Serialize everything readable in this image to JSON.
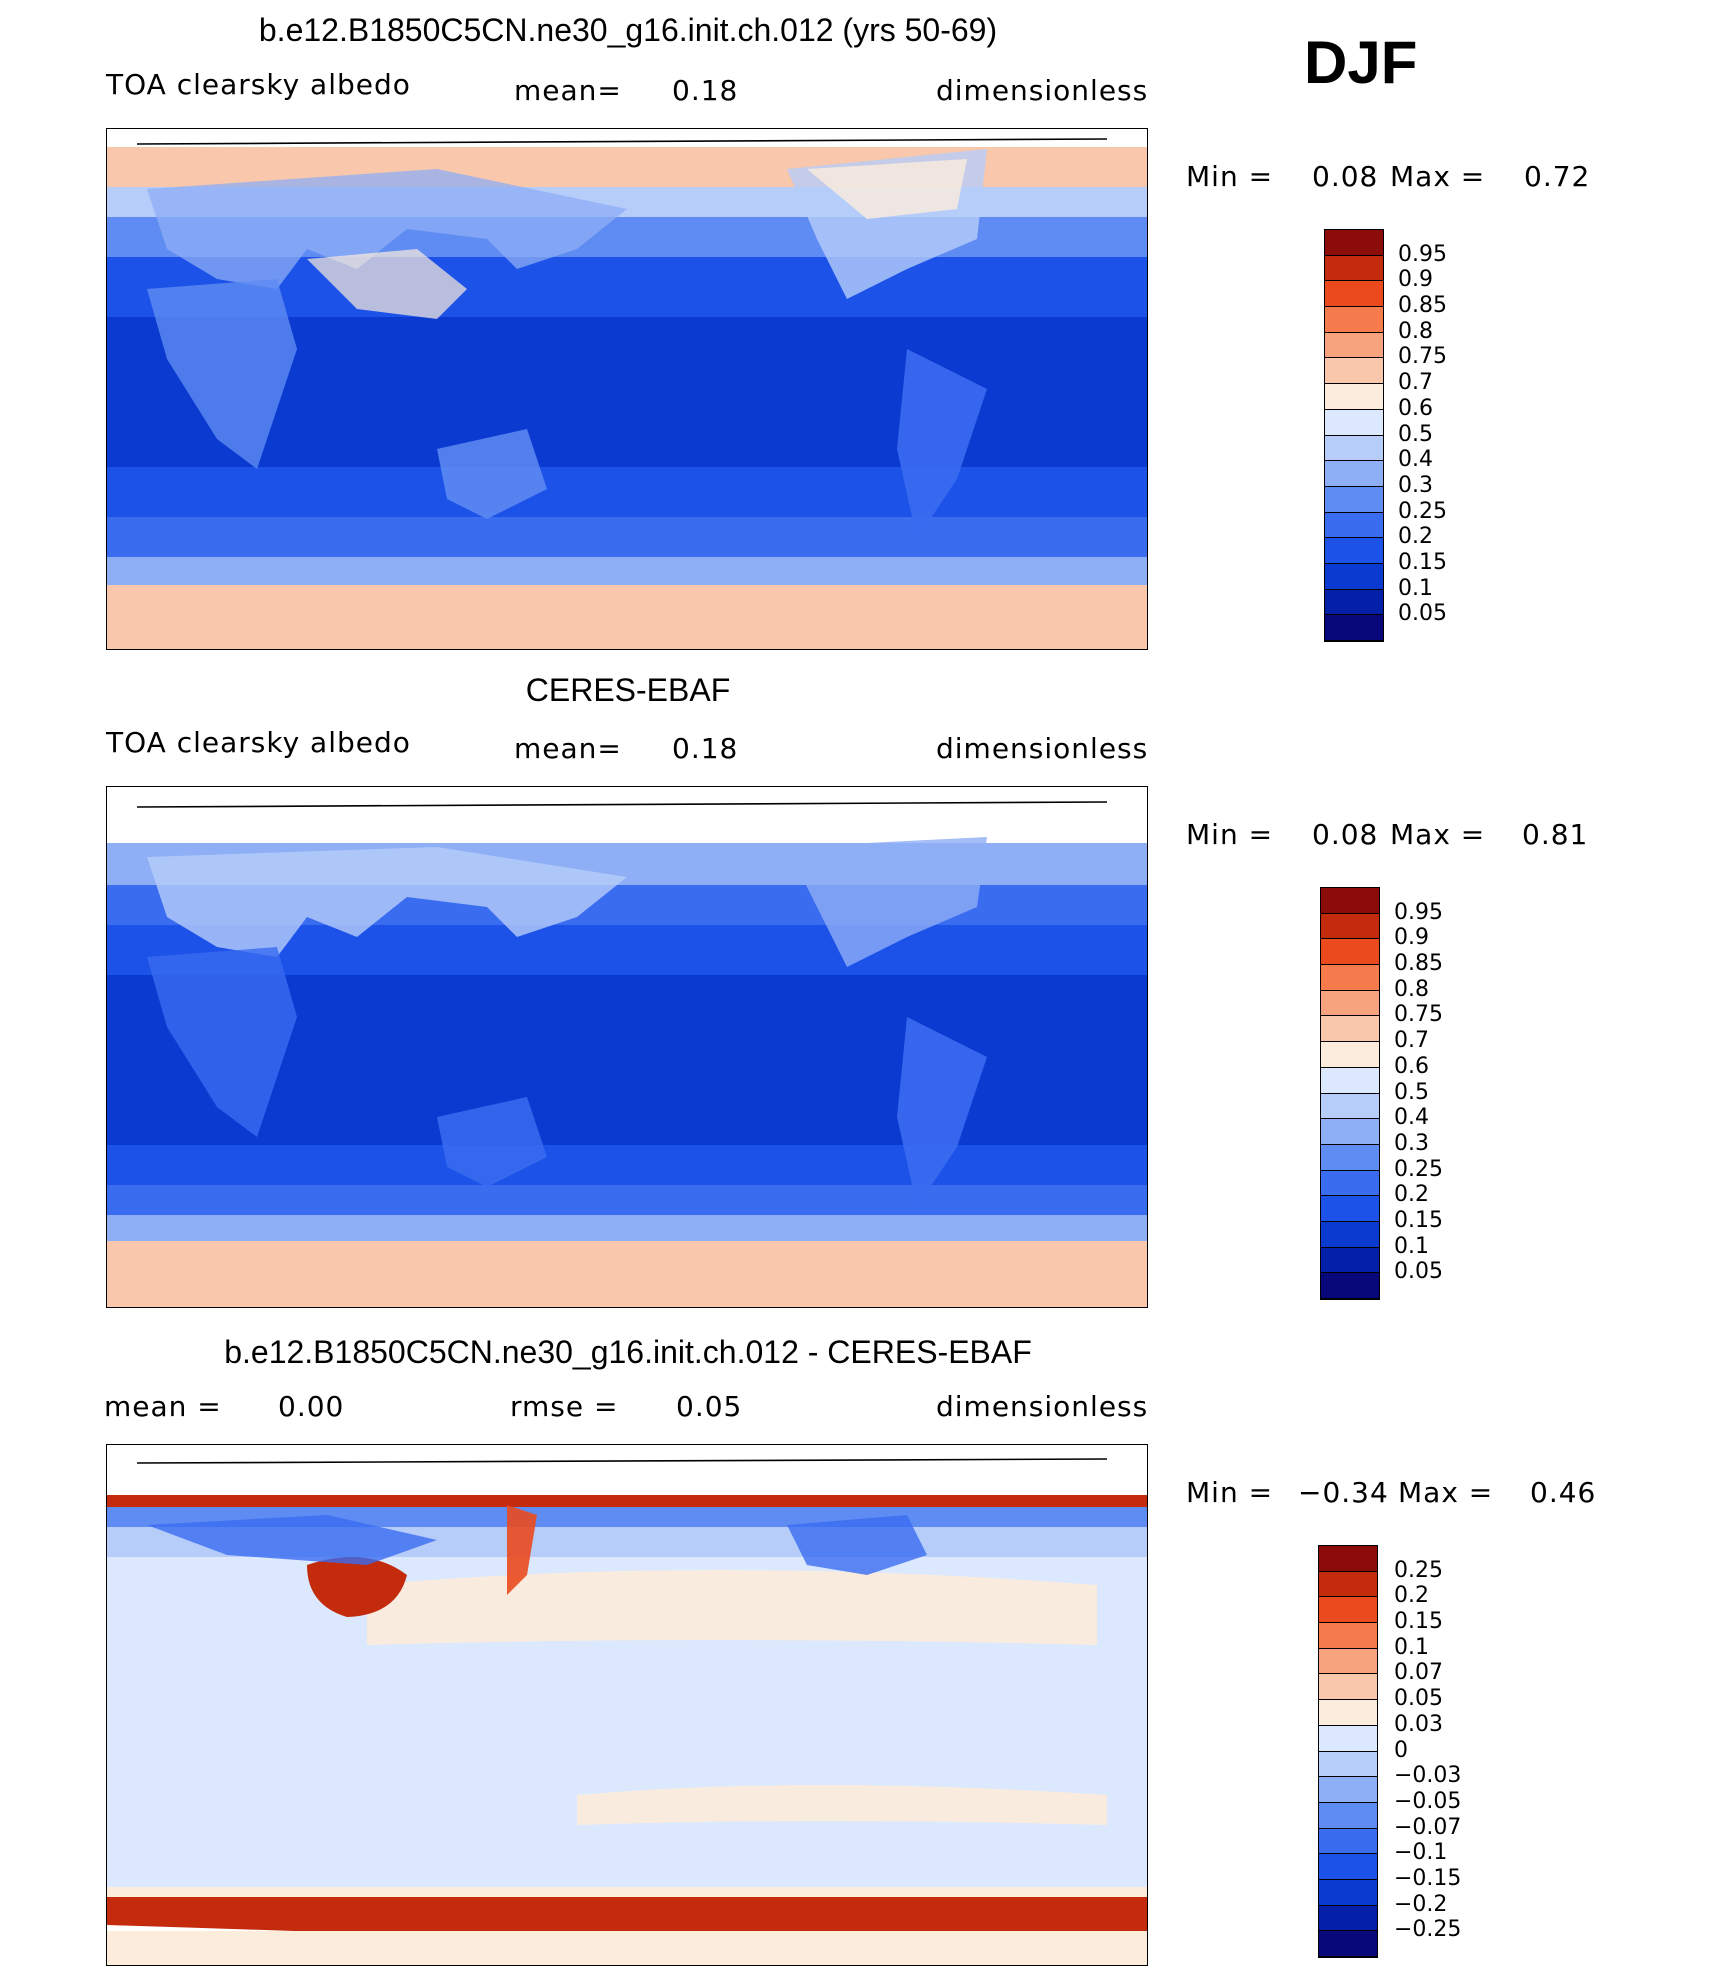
{
  "season": "DJF",
  "colors": {
    "abs_scale": [
      "#08087a",
      "#0420a8",
      "#0a3ad0",
      "#1c52e8",
      "#3a6cf0",
      "#5f8cf2",
      "#8eaef6",
      "#b6cdfa",
      "#dbe8fd",
      "#fcecdc",
      "#f9c8ac",
      "#f7a37e",
      "#f57a4c",
      "#ea4a1e",
      "#c42a0c",
      "#8c0c0a"
    ],
    "diff_scale": [
      "#08087a",
      "#0420a8",
      "#0a3ad0",
      "#1c52e8",
      "#3a6cf0",
      "#5f8cf2",
      "#8eaef6",
      "#b6cdfa",
      "#dbe8fd",
      "#fcecdc",
      "#f9c8ac",
      "#f7a37e",
      "#f57a4c",
      "#ea4a1e",
      "#c42a0c",
      "#8c0c0a"
    ]
  },
  "panels": [
    {
      "title": "b.e12.B1850C5CN.ne30_g16.init.ch.012 (yrs 50-69)",
      "variable": "TOA clearsky albedo",
      "stat1": "mean=",
      "stat1_value": "0.18",
      "units": "dimensionless",
      "min_label": "Min =",
      "min_value": "0.08",
      "max_label": "Max =",
      "max_value": "0.72",
      "colorbar_labels": [
        "0.95",
        "0.9",
        "0.85",
        "0.8",
        "0.75",
        "0.7",
        "0.6",
        "0.5",
        "0.4",
        "0.3",
        "0.25",
        "0.2",
        "0.15",
        "0.1",
        "0.05"
      ]
    },
    {
      "title": "CERES-EBAF",
      "variable": "TOA clearsky albedo",
      "stat1": "mean=",
      "stat1_value": "0.18",
      "units": "dimensionless",
      "min_label": "Min =",
      "min_value": "0.08",
      "max_label": "Max =",
      "max_value": "0.81",
      "colorbar_labels": [
        "0.95",
        "0.9",
        "0.85",
        "0.8",
        "0.75",
        "0.7",
        "0.6",
        "0.5",
        "0.4",
        "0.3",
        "0.25",
        "0.2",
        "0.15",
        "0.1",
        "0.05"
      ]
    },
    {
      "title": "b.e12.B1850C5CN.ne30_g16.init.ch.012 - CERES-EBAF",
      "stat1": "mean =",
      "stat1_value": "0.00",
      "stat2": "rmse =",
      "stat2_value": "0.05",
      "units": "dimensionless",
      "min_label": "Min =",
      "min_value": "−0.34",
      "max_label": "Max =",
      "max_value": "0.46",
      "colorbar_labels": [
        "0.25",
        "0.2",
        "0.15",
        "0.1",
        "0.07",
        "0.05",
        "0.03",
        "0",
        "−0.03",
        "−0.05",
        "−0.07",
        "−0.1",
        "−0.15",
        "−0.2",
        "−0.25"
      ]
    }
  ]
}
